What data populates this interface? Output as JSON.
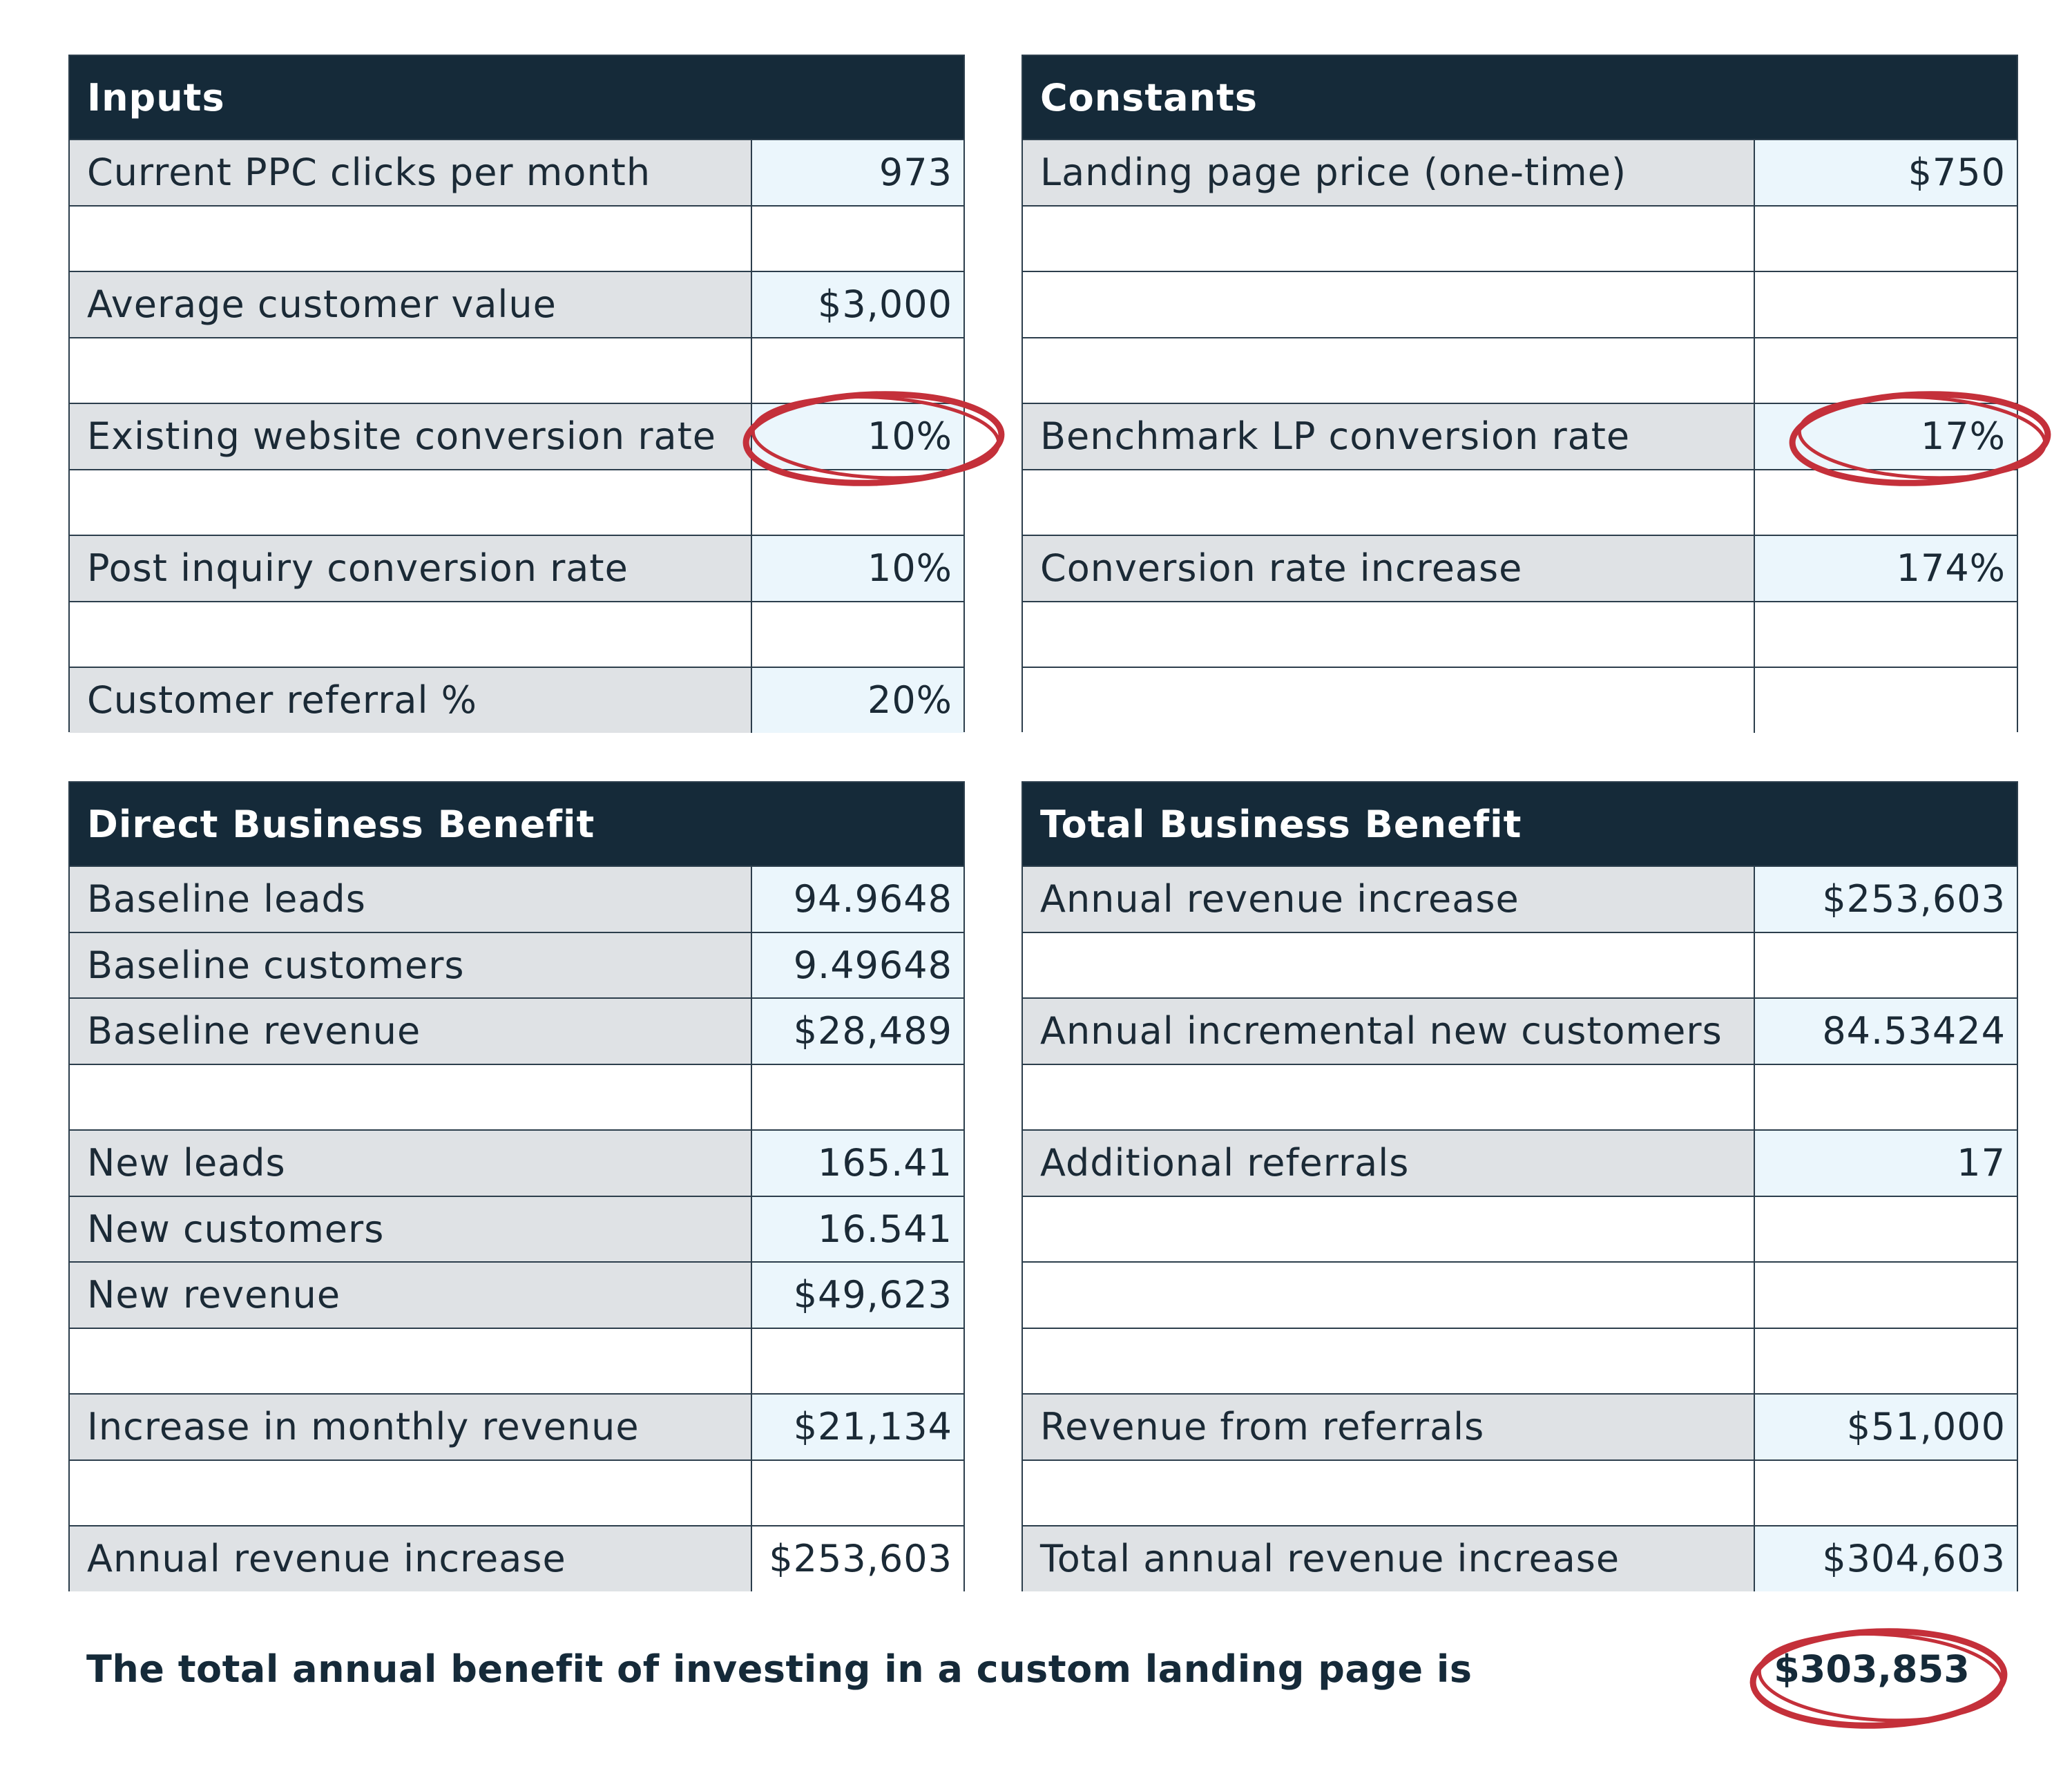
{
  "inputs": {
    "title": "Inputs",
    "rows": [
      {
        "label": "Current PPC clicks per month",
        "value": "973"
      },
      {
        "label": "",
        "value": ""
      },
      {
        "label": "Average customer value",
        "value": "$3,000"
      },
      {
        "label": "",
        "value": ""
      },
      {
        "label": "Existing website conversion rate",
        "value": "10%"
      },
      {
        "label": "",
        "value": ""
      },
      {
        "label": "Post inquiry conversion rate",
        "value": "10%"
      },
      {
        "label": "",
        "value": ""
      },
      {
        "label": "Customer referral %",
        "value": "20%"
      }
    ]
  },
  "constants": {
    "title": "Constants",
    "rows": [
      {
        "label": "Landing page price (one-time)",
        "value": "$750"
      },
      {
        "label": "",
        "value": ""
      },
      {
        "label": "",
        "value": ""
      },
      {
        "label": "",
        "value": ""
      },
      {
        "label": "Benchmark LP conversion rate",
        "value": "17%"
      },
      {
        "label": "",
        "value": ""
      },
      {
        "label": "Conversion rate increase",
        "value": "174%"
      },
      {
        "label": "",
        "value": ""
      },
      {
        "label": "",
        "value": ""
      }
    ]
  },
  "direct_benefit": {
    "title": "Direct Business Benefit",
    "rows": [
      {
        "label": "Baseline leads",
        "value": "94.9648"
      },
      {
        "label": "Baseline customers",
        "value": "9.49648"
      },
      {
        "label": "Baseline revenue",
        "value": "$28,489"
      },
      {
        "label": "",
        "value": ""
      },
      {
        "label": "New leads",
        "value": "165.41"
      },
      {
        "label": "New customers",
        "value": "16.541"
      },
      {
        "label": "New revenue",
        "value": "$49,623"
      },
      {
        "label": "",
        "value": ""
      },
      {
        "label": "Increase in monthly revenue",
        "value": "$21,134"
      },
      {
        "label": "",
        "value": ""
      },
      {
        "label": "Annual revenue increase",
        "value": "$253,603"
      }
    ]
  },
  "total_benefit": {
    "title": "Total Business Benefit",
    "rows": [
      {
        "label": "Annual revenue increase",
        "value": "$253,603"
      },
      {
        "label": "",
        "value": ""
      },
      {
        "label": "Annual incremental new customers",
        "value": "84.53424"
      },
      {
        "label": "",
        "value": ""
      },
      {
        "label": "Additional referrals",
        "value": "17"
      },
      {
        "label": "",
        "value": ""
      },
      {
        "label": "",
        "value": ""
      },
      {
        "label": "",
        "value": ""
      },
      {
        "label": "Revenue from referrals",
        "value": "$51,000"
      },
      {
        "label": "",
        "value": ""
      },
      {
        "label": "Total annual revenue increase",
        "value": "$304,603"
      }
    ]
  },
  "summary": {
    "text": "The total annual benefit of investing in a custom landing page is",
    "value": "$303,853"
  },
  "colors": {
    "header_bg": "#152a39",
    "label_fill": "#dfe2e5",
    "value_fill": "#ebf6fc",
    "highlight_ring": "#c4303a"
  }
}
